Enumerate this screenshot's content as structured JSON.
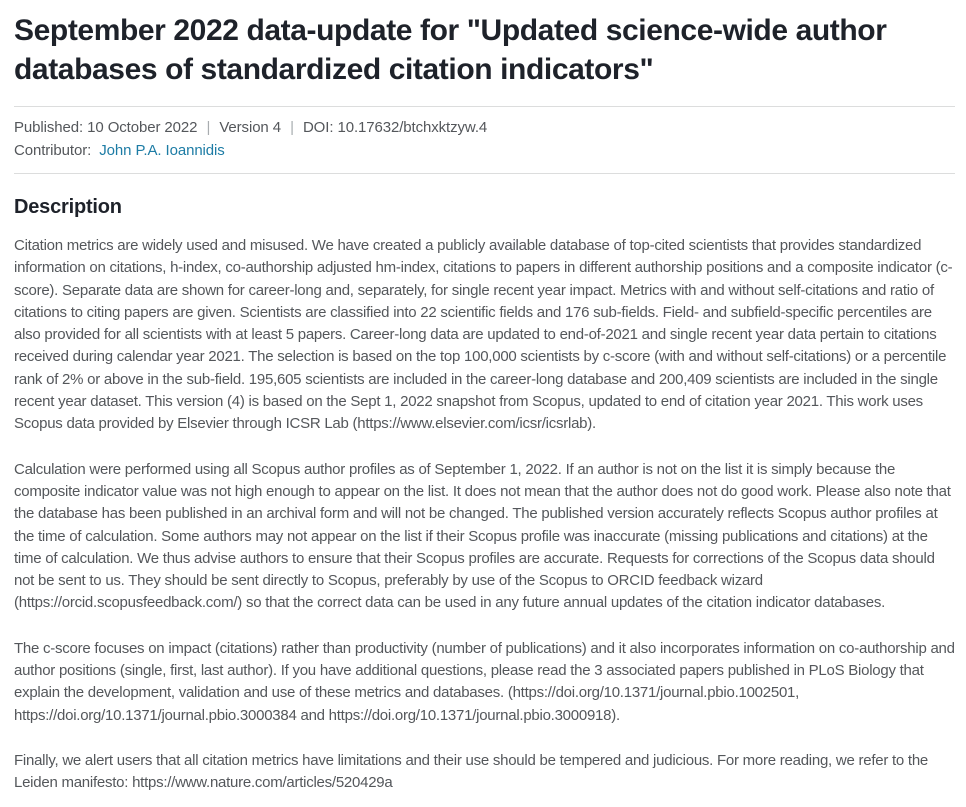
{
  "header": {
    "title": "September 2022 data-update for \"Updated science-wide author databases of standardized citation indicators\""
  },
  "meta": {
    "published_label": "Published:",
    "published_date": "10 October 2022",
    "separator": "|",
    "version": "Version 4",
    "doi_label": "DOI:",
    "doi": "10.17632/btchxktzyw.4",
    "contributor_label": "Contributor:",
    "contributor_name": "John P.A. Ioannidis"
  },
  "description": {
    "heading": "Description",
    "paragraphs": [
      "Citation metrics are widely used and misused. We have created a publicly available database of top-cited scientists that provides standardized information on citations, h-index, co-authorship adjusted hm-index, citations to papers in different authorship positions and a composite indicator (c-score). Separate data are shown for career-long and, separately, for single recent year impact. Metrics with and without self-citations and ratio of citations to citing papers are given. Scientists are classified into 22 scientific fields and 176 sub-fields. Field- and subfield-specific percentiles are also provided for all scientists with at least 5 papers. Career-long data are updated to end-of-2021 and single recent year data pertain to citations received during calendar year 2021. The selection is based on the top 100,000 scientists by c-score (with and without self-citations) or a percentile rank of 2% or above in the sub-field. 195,605 scientists are included in the career-long database and 200,409 scientists are included in the single recent year dataset. This version (4) is based on the Sept 1, 2022 snapshot from Scopus, updated to end of citation year 2021. This work uses Scopus data provided by Elsevier through ICSR Lab (https://www.elsevier.com/icsr/icsrlab).",
      "Calculation were performed using all Scopus author profiles as of September 1, 2022. If an author is not on the list it is simply because the composite indicator value was not high enough to appear on the list. It does not mean that the author does not do good work.  Please also note that the database has been published in an archival form and will not be changed. The published version accurately reflects Scopus author profiles at the time of calculation.  Some authors may not appear on the list if their Scopus profile was inaccurate (missing publications and citations) at the time of calculation. We thus advise authors to ensure that their Scopus profiles are accurate. Requests for corrections of the Scopus data should not be sent to us. They should be sent directly to Scopus, preferably by use of the Scopus to ORCID feedback wizard (https://orcid.scopusfeedback.com/) so that the correct data can be used in any future annual updates of the citation indicator databases.",
      "The c-score focuses on impact (citations) rather than productivity (number of publications) and it also incorporates information on co-authorship and author positions (single, first, last author). If you have additional questions, please read the 3 associated papers published in PLoS Biology that explain the development, validation and use of these metrics and databases. (https://doi.org/10.1371/journal.pbio.1002501, https://doi.org/10.1371/journal.pbio.3000384 and https://doi.org/10.1371/journal.pbio.3000918).",
      "Finally, we alert users that all citation metrics have limitations and their use should be tempered and judicious. For more reading, we refer to the Leiden manifesto: https://www.nature.com/articles/520429a"
    ]
  },
  "colors": {
    "title_text": "#1e222a",
    "body_text": "#54575b",
    "link": "#1d7ca5",
    "divider": "#dcdddd",
    "separator_pipe": "#a8acaf"
  }
}
